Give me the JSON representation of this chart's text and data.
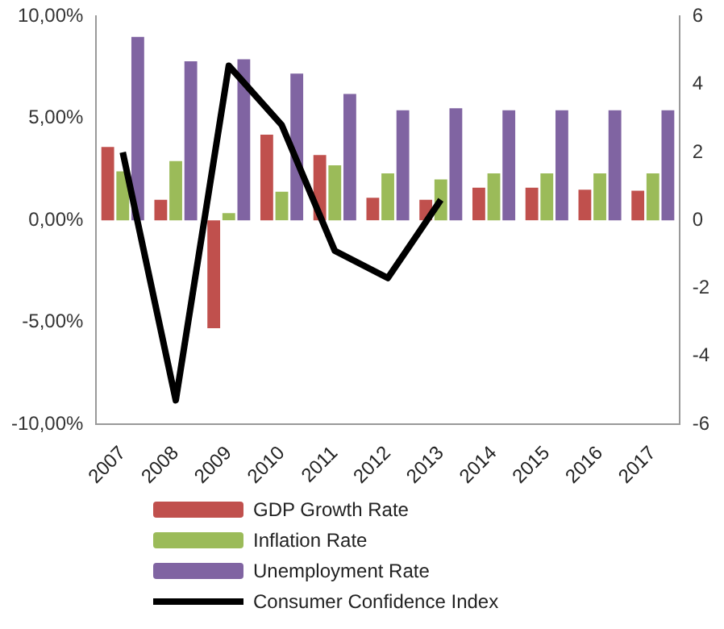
{
  "chart_data": {
    "type": "bar",
    "categories": [
      "2007",
      "2008",
      "2009",
      "2010",
      "2011",
      "2012",
      "2013",
      "2014",
      "2015",
      "2016",
      "2017"
    ],
    "series": [
      {
        "name": "GDP Growth Rate",
        "color": "#c0504d",
        "values": [
          3.6,
          1.0,
          -5.3,
          4.2,
          3.2,
          1.1,
          1.0,
          1.6,
          1.6,
          1.5,
          1.45
        ]
      },
      {
        "name": "Inflation Rate",
        "color": "#9bbb59",
        "values": [
          2.4,
          2.9,
          0.35,
          1.4,
          2.7,
          2.3,
          2.0,
          2.3,
          2.3,
          2.3,
          2.3
        ]
      },
      {
        "name": "Unemployment Rate",
        "color": "#8064a2",
        "values": [
          9.0,
          7.8,
          7.9,
          7.2,
          6.2,
          5.4,
          5.5,
          5.4,
          5.4,
          5.4,
          5.4
        ]
      },
      {
        "name": "Consumer Confidence Index",
        "type": "line",
        "axis": "y2",
        "color": "#000000",
        "values": [
          2.0,
          -5.3,
          4.55,
          2.8,
          -0.9,
          -1.7,
          0.6,
          null,
          null,
          null,
          null
        ]
      }
    ],
    "ylim": [
      -10,
      10
    ],
    "yticks": [
      {
        "value": -10,
        "label": "-10,00%"
      },
      {
        "value": -5,
        "label": "-5,00%"
      },
      {
        "value": 0,
        "label": "0,00%"
      },
      {
        "value": 5,
        "label": "5,00%"
      },
      {
        "value": 10,
        "label": "10,00%"
      }
    ],
    "y2lim": [
      -6,
      6
    ],
    "y2ticks": [
      -6,
      -4,
      -2,
      0,
      2,
      4,
      6
    ],
    "grid": false,
    "legend": "bottom",
    "marker": "none"
  }
}
